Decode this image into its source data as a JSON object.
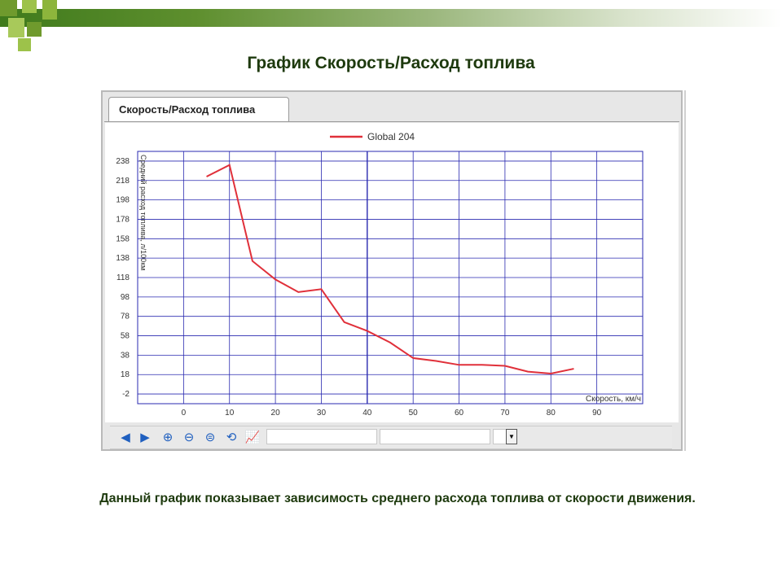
{
  "slide": {
    "title": "График Скорость/Расход топлива",
    "caption": "Данный график показывает зависимость среднего расхода топлива от скорости движения.",
    "colors": {
      "title": "#1e3a0e",
      "band_start": "#3f7a1c",
      "square": "#8db53c"
    }
  },
  "app": {
    "tab_label": "Скорость/Расход топлива",
    "toolbar": {
      "buttons": [
        {
          "name": "back-arrow-icon",
          "glyph": "◀"
        },
        {
          "name": "forward-arrow-icon",
          "glyph": "▶"
        },
        {
          "name": "zoom-in-icon",
          "glyph": "⊕"
        },
        {
          "name": "zoom-out-icon",
          "glyph": "⊖"
        },
        {
          "name": "zoom-reset-icon",
          "glyph": "⊜"
        },
        {
          "name": "refresh-icon",
          "glyph": "⟲"
        },
        {
          "name": "chart-icon",
          "glyph": "📈"
        }
      ],
      "field1_value": "",
      "field2_value": "",
      "select_value": ""
    }
  },
  "chart_data": {
    "type": "line",
    "title": "",
    "xlabel": "Скорость, км/ч",
    "ylabel": "Средний расход топлива, л/100км",
    "xlim": [
      -10,
      100
    ],
    "ylim": [
      -12,
      248
    ],
    "x_ticks": [
      0,
      10,
      20,
      30,
      40,
      50,
      60,
      70,
      80,
      90
    ],
    "y_ticks": [
      -2,
      18,
      38,
      58,
      78,
      98,
      118,
      138,
      158,
      178,
      198,
      218,
      238
    ],
    "grid": true,
    "legend": "top-center",
    "series": [
      {
        "name": "Global 204",
        "color": "#e0303a",
        "x": [
          5,
          10,
          15,
          20,
          25,
          30,
          35,
          40,
          45,
          50,
          55,
          60,
          65,
          70,
          75,
          80,
          85
        ],
        "y": [
          222,
          234,
          135,
          116,
          103,
          106,
          72,
          63,
          51,
          35,
          32,
          28,
          28,
          27,
          21,
          19,
          24
        ]
      }
    ]
  }
}
